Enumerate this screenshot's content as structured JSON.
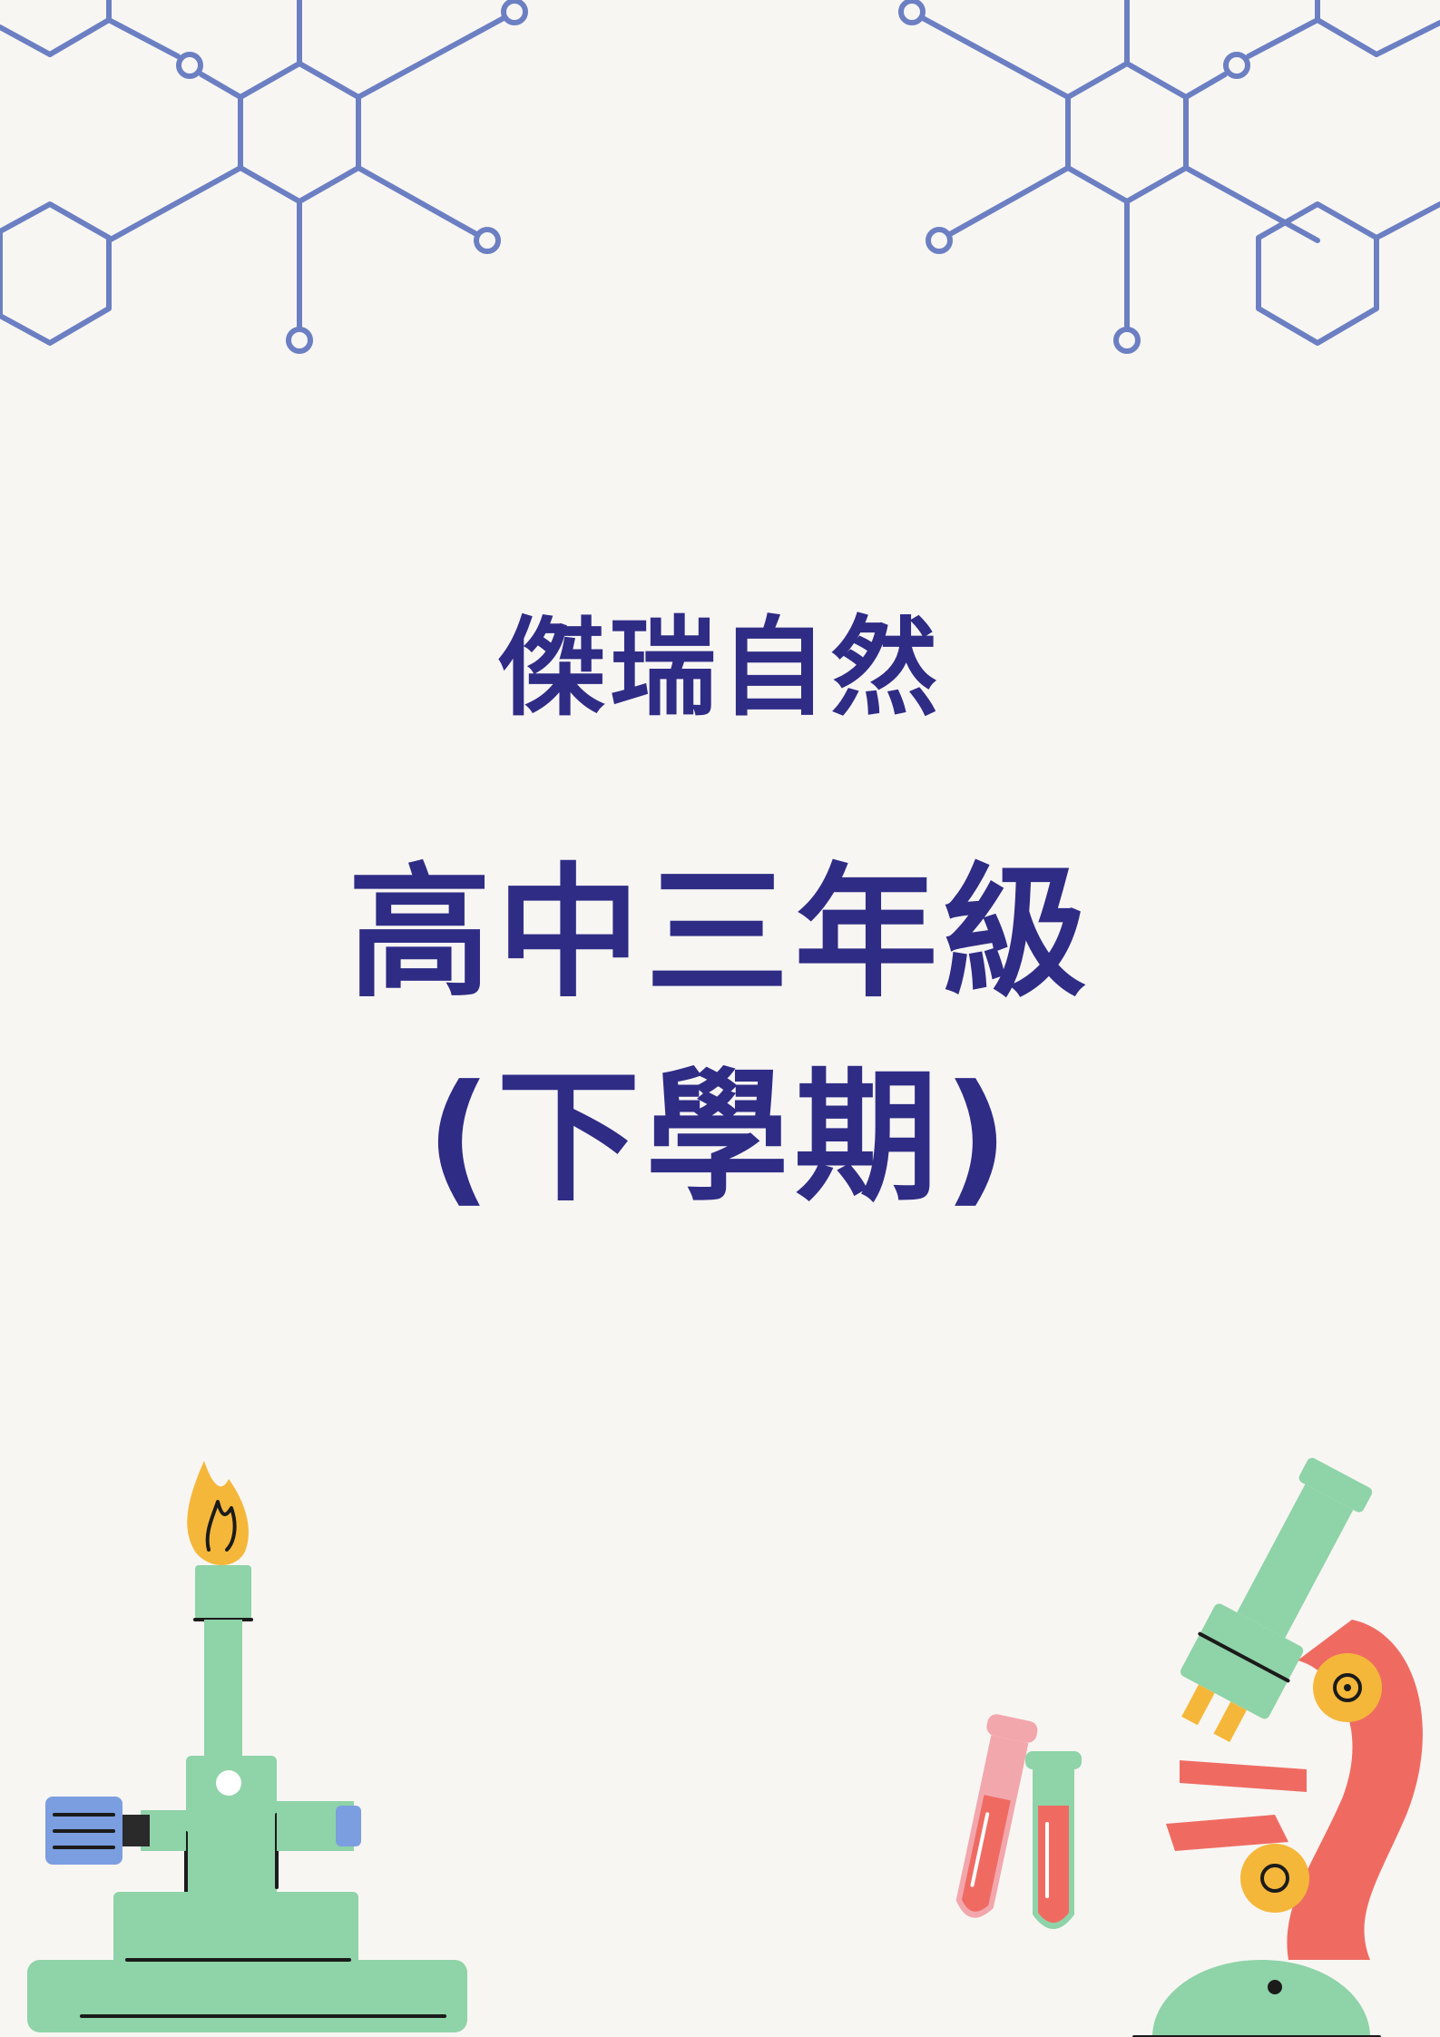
{
  "cover": {
    "brand": "傑瑞自然",
    "grade": "高中三年級",
    "term": "(下學期)"
  },
  "colors": {
    "background": "#f8f6f3",
    "title": "#2f2c86",
    "molecule": "#6b7fc2",
    "green": "#8fd3a8",
    "red": "#ef6b62",
    "pink": "#f2a7ad",
    "yellow": "#f5b73a",
    "blue": "#7b9ee0"
  },
  "decorations": {
    "top_left": "molecule-structure-icon",
    "top_right": "molecule-structure-icon",
    "bottom_left": "bunsen-burner-icon",
    "bottom_right_tubes": "test-tubes-icon",
    "bottom_right_microscope": "microscope-icon"
  }
}
